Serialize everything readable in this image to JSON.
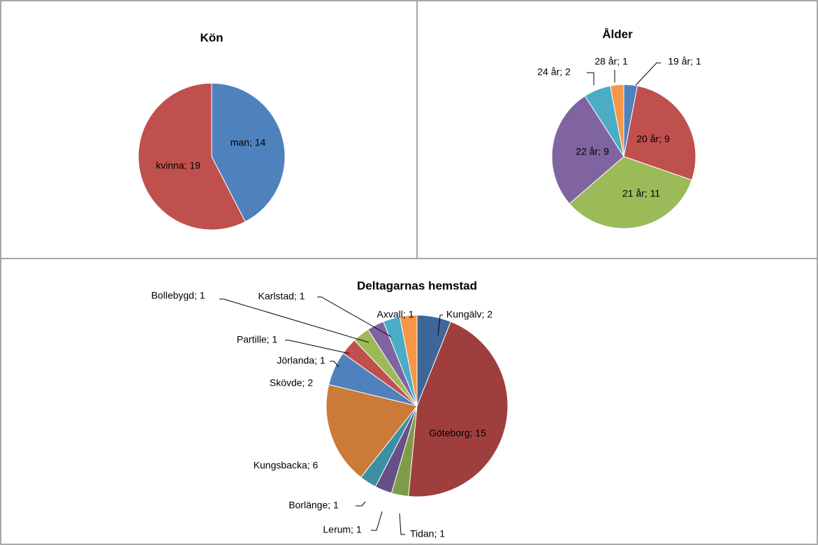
{
  "chart_data": [
    {
      "type": "pie",
      "title": "Kön",
      "categories": [
        "man",
        "kvinna"
      ],
      "values": [
        14,
        19
      ],
      "value_labels": [
        "man; 14",
        "kvinna; 19"
      ],
      "colors": [
        "#4f81bd",
        "#c0504d"
      ]
    },
    {
      "type": "pie",
      "title": "Ålder",
      "categories": [
        "19 år",
        "20 år",
        "21 år",
        "22 år",
        "24 år",
        "28 år"
      ],
      "values": [
        1,
        9,
        11,
        9,
        2,
        1
      ],
      "value_labels": [
        "19 år; 1",
        "20 år; 9",
        "21 år; 11",
        "22 år; 9",
        "24 år; 2",
        "28 år; 1"
      ],
      "colors": [
        "#4f81bd",
        "#c0504d",
        "#9bbb59",
        "#8064a2",
        "#4bacc6",
        "#f79646"
      ]
    },
    {
      "type": "pie",
      "title": "Deltagarnas hemstad",
      "categories": [
        "Kungälv",
        "Göteborg",
        "Tidan",
        "Lerum",
        "Borlänge",
        "Kungsbacka",
        "Skövde",
        "Jörlanda",
        "Partille",
        "Bollebygd",
        "Karlstad",
        "Axvall"
      ],
      "values": [
        2,
        15,
        1,
        1,
        1,
        6,
        2,
        1,
        1,
        1,
        1,
        1
      ],
      "value_labels": [
        "Kungälv; 2",
        "Göteborg; 15",
        "Tidan; 1",
        "Lerum; 1",
        "Borlänge; 1",
        "Kungsbacka; 6",
        "Skövde; 2",
        "Jörlanda; 1",
        "Partille; 1",
        "Bollebygd; 1",
        "Karlstad; 1",
        "Axvall; 1"
      ],
      "colors": [
        "#3f6699",
        "#9e3f3d",
        "#7f9b48",
        "#674f87",
        "#3c8fa5",
        "#cc7a38",
        "#4f81bd",
        "#c0504d",
        "#9bbb59",
        "#8064a2",
        "#4bacc6",
        "#f79646"
      ]
    }
  ]
}
